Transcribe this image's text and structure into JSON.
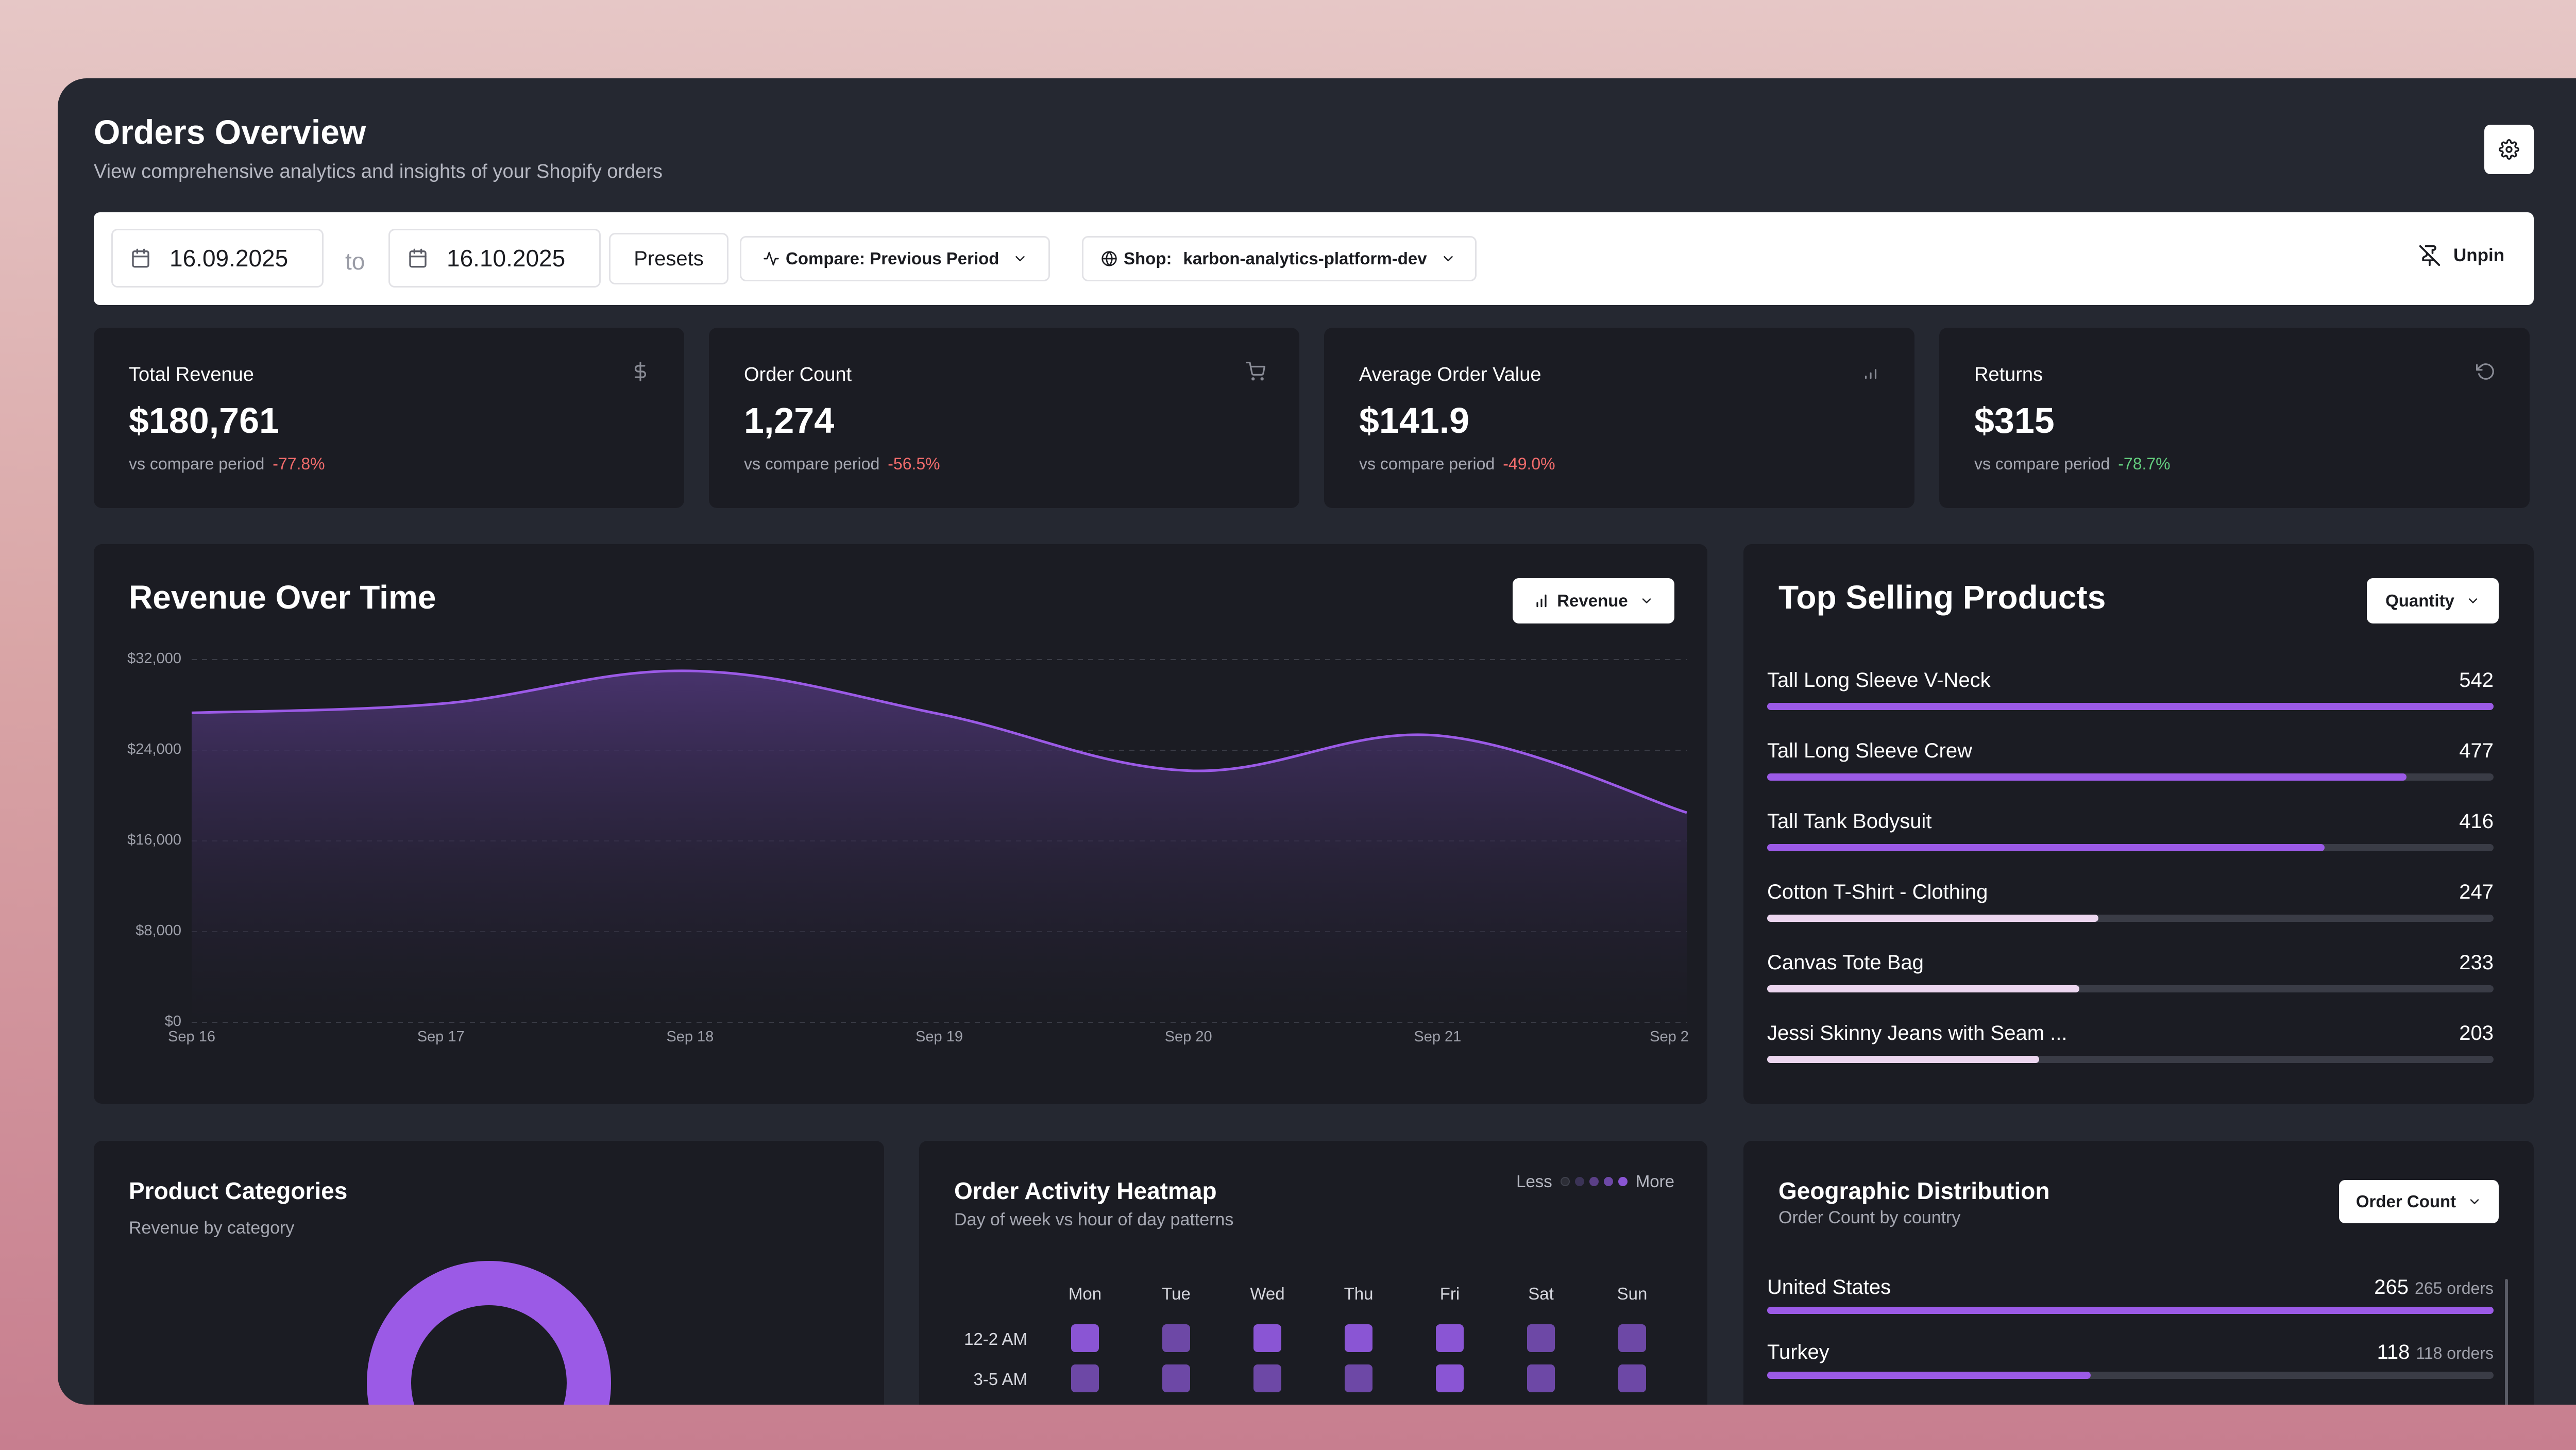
{
  "header": {
    "title": "Orders Overview",
    "subtitle": "View comprehensive analytics and insights of your Shopify orders"
  },
  "toolbar": {
    "date_from": "16.09.2025",
    "to_label": "to",
    "date_to": "16.10.2025",
    "presets_label": "Presets",
    "compare_label": "Compare: Previous Period",
    "shop_label": "Shop:",
    "shop_value": "karbon-analytics-platform-dev",
    "unpin_label": "Unpin"
  },
  "kpis": [
    {
      "label": "Total Revenue",
      "value": "$180,761",
      "cmp_label": "vs compare period",
      "change": "-77.8%",
      "trend": "negative",
      "icon": "dollar-icon"
    },
    {
      "label": "Order Count",
      "value": "1,274",
      "cmp_label": "vs compare period",
      "change": "-56.5%",
      "trend": "negative",
      "icon": "cart-icon"
    },
    {
      "label": "Average Order Value",
      "value": "$141.9",
      "cmp_label": "vs compare period",
      "change": "-49.0%",
      "trend": "negative",
      "icon": "bar-chart-icon"
    },
    {
      "label": "Returns",
      "value": "$315",
      "cmp_label": "vs compare period",
      "change": "-78.7%",
      "trend": "positive",
      "icon": "rotate-ccw-icon"
    }
  ],
  "revenue_chart": {
    "title": "Revenue Over Time",
    "metric_button": "Revenue"
  },
  "chart_data": {
    "type": "area",
    "categories": [
      "Sep 16",
      "Sep 17",
      "Sep 18",
      "Sep 19",
      "Sep 20",
      "Sep 21",
      "Sep 2"
    ],
    "x": [
      0,
      1,
      2,
      3,
      4,
      5,
      6
    ],
    "values": [
      27300,
      28100,
      31000,
      27200,
      22200,
      25300,
      18500
    ],
    "y_ticks": [
      "$0",
      "$8,000",
      "$16,000",
      "$24,000",
      "$32,000"
    ],
    "ylim": [
      0,
      32000
    ],
    "grid": true,
    "colors": {
      "line": "#9b5ae6",
      "fill_top": "#4a3470",
      "fill_bottom": "#1b1c23"
    }
  },
  "top_products": {
    "title": "Top Selling Products",
    "sort_button": "Quantity",
    "max": 542,
    "items": [
      {
        "name": "Tall Long Sleeve V-Neck",
        "value": 542,
        "color": "#9b5ae6"
      },
      {
        "name": "Tall Long Sleeve Crew",
        "value": 477,
        "color": "#9b5ae6"
      },
      {
        "name": "Tall Tank Bodysuit",
        "value": 416,
        "color": "#9b5ae6"
      },
      {
        "name": "Cotton T-Shirt - Clothing",
        "value": 247,
        "color": "#ecd6ef"
      },
      {
        "name": "Canvas Tote Bag",
        "value": 233,
        "color": "#ecd6ef"
      },
      {
        "name": "Jessi Skinny Jeans with Seam ...",
        "value": 203,
        "color": "#ecd6ef"
      }
    ]
  },
  "categories_panel": {
    "title": "Product Categories",
    "subtitle": "Revenue by category",
    "donut_color": "#9b5ae6"
  },
  "heatmap": {
    "title": "Order Activity Heatmap",
    "subtitle": "Day of week vs hour of day patterns",
    "legend_less": "Less",
    "legend_more": "More",
    "days": [
      "Mon",
      "Tue",
      "Wed",
      "Thu",
      "Fri",
      "Sat",
      "Sun"
    ],
    "hours": [
      "12-2 AM",
      "3-5 AM"
    ],
    "levels": [
      [
        4,
        3,
        4,
        4,
        4,
        3,
        3
      ],
      [
        3,
        3,
        3,
        3,
        4,
        3,
        3
      ]
    ],
    "level_colors": [
      "#2c2d36",
      "#3b3356",
      "#5a3f86",
      "#6d48a6",
      "#8a55d4"
    ]
  },
  "geo": {
    "title": "Geographic Distribution",
    "subtitle": "Order Count by country",
    "sort_button": "Order Count",
    "max": 265,
    "items": [
      {
        "country": "United States",
        "value": "265",
        "value_num": 265,
        "detail": "265 orders"
      },
      {
        "country": "Turkey",
        "value": "118",
        "value_num": 118,
        "detail": "118 orders"
      }
    ]
  }
}
